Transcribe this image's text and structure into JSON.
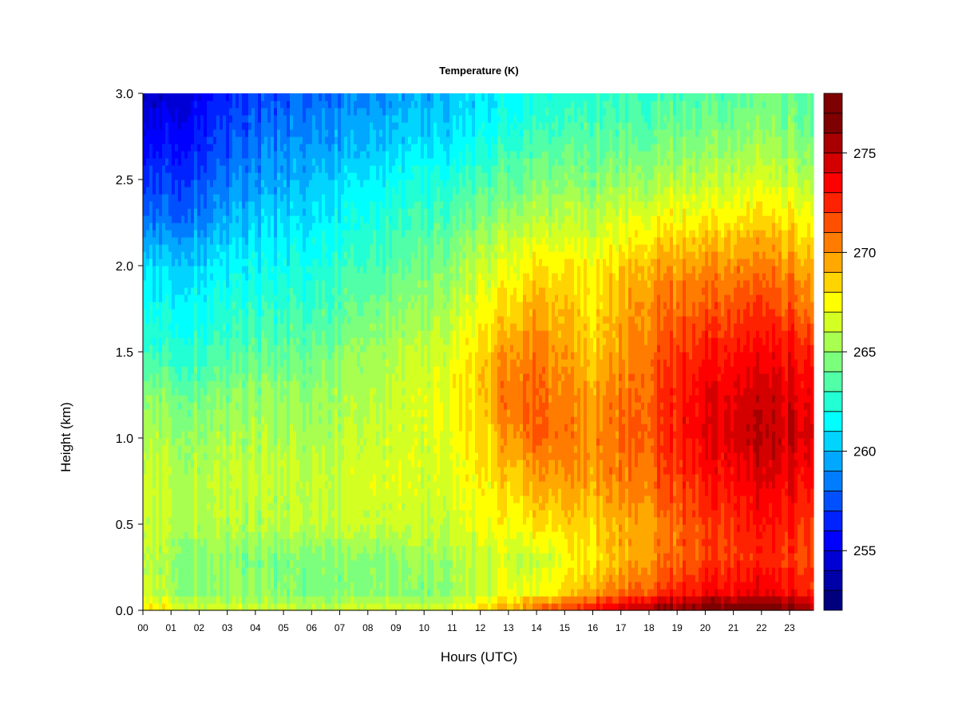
{
  "chart_data": {
    "type": "heatmap",
    "title": "Temperature (K)",
    "xlabel": "Hours (UTC)",
    "ylabel": "Height (km)",
    "x_ticks": [
      "00",
      "01",
      "02",
      "03",
      "04",
      "05",
      "06",
      "07",
      "08",
      "09",
      "10",
      "11",
      "12",
      "13",
      "14",
      "15",
      "16",
      "17",
      "18",
      "19",
      "20",
      "21",
      "22",
      "23"
    ],
    "y_ticks": [
      "0.0",
      "0.5",
      "1.0",
      "1.5",
      "2.0",
      "2.5",
      "3.0"
    ],
    "xlim": [
      0,
      23.85
    ],
    "ylim": [
      0,
      3.0
    ],
    "x_hours": [
      0,
      2,
      4,
      6,
      8,
      10,
      12,
      13,
      14,
      16,
      18,
      20,
      22,
      23.85
    ],
    "y_km": [
      0,
      0.05,
      0.1,
      0.3,
      0.5,
      0.75,
      1.0,
      1.25,
      1.5,
      1.75,
      2.0,
      2.25,
      2.5,
      2.75,
      3.0
    ],
    "z_kelvin": [
      [
        268,
        267,
        266.5,
        266,
        266.5,
        266.5,
        268,
        269.5,
        271,
        273,
        276,
        277,
        277,
        276
      ],
      [
        267,
        266,
        265.5,
        265.5,
        265.5,
        265.5,
        267,
        268.5,
        269.5,
        271.5,
        274,
        276,
        276,
        275
      ],
      [
        266,
        265,
        265,
        264.5,
        264.5,
        264.5,
        266,
        267.5,
        267,
        269.5,
        272,
        273.5,
        274,
        273
      ],
      [
        265.5,
        265,
        264.5,
        264.5,
        264.5,
        265,
        266,
        266.5,
        266,
        268,
        270,
        272,
        272.5,
        272
      ],
      [
        266,
        266,
        265.5,
        266,
        266,
        266,
        267,
        267.5,
        268,
        268.5,
        270,
        272,
        273,
        272.5
      ],
      [
        266,
        266,
        266,
        266,
        266.5,
        266.5,
        267.5,
        268.5,
        269.5,
        269.5,
        271,
        273,
        274,
        273.5
      ],
      [
        265.5,
        265.5,
        265.5,
        265.5,
        266,
        266.5,
        268,
        270,
        271,
        270,
        271.5,
        274,
        275,
        274.5
      ],
      [
        264.5,
        264.5,
        265,
        265,
        265.5,
        266.5,
        268.5,
        271,
        271,
        269.5,
        271.5,
        274,
        274.5,
        274
      ],
      [
        262.5,
        263,
        263.5,
        264,
        265,
        266,
        268,
        270,
        270.5,
        268.5,
        271,
        273,
        273.5,
        273
      ],
      [
        261.5,
        262,
        262.5,
        263,
        264,
        265,
        267,
        268.5,
        269.5,
        268,
        270.5,
        271.5,
        272,
        271
      ],
      [
        260.5,
        261,
        261.5,
        262,
        263,
        264,
        266,
        267,
        268,
        267.5,
        269.5,
        270,
        270.5,
        269.5
      ],
      [
        258,
        259,
        260.5,
        261,
        262,
        263,
        264.5,
        265.5,
        266,
        266,
        267.5,
        268,
        268.5,
        268
      ],
      [
        256.5,
        257.5,
        259,
        260,
        261,
        262,
        263,
        264,
        264.5,
        264.5,
        265.5,
        266,
        266.5,
        266
      ],
      [
        255,
        256.5,
        258,
        259,
        259.5,
        260.5,
        261.5,
        262.5,
        263,
        263.5,
        264,
        264.5,
        265,
        264.5
      ],
      [
        253.5,
        255.5,
        257,
        258,
        258.5,
        259.5,
        260.5,
        261.5,
        262,
        262.5,
        263,
        263.5,
        264,
        264
      ]
    ],
    "colorbar": {
      "min": 252,
      "max": 278,
      "step": 1,
      "tick_labels": [
        "255",
        "260",
        "265",
        "270",
        "275"
      ],
      "tick_values": [
        255,
        260,
        265,
        270,
        275
      ],
      "colors": [
        "#00007f",
        "#0000a8",
        "#0000d4",
        "#0000ff",
        "#0022ff",
        "#0050ff",
        "#007cff",
        "#00a8ff",
        "#00d4ff",
        "#00ffff",
        "#22ffd4",
        "#50ffa8",
        "#7cff7c",
        "#a8ff50",
        "#d4ff22",
        "#ffff00",
        "#ffd400",
        "#ffa800",
        "#ff7c00",
        "#ff5000",
        "#ff2200",
        "#ff0000",
        "#d40000",
        "#a80000",
        "#7f0000",
        "#7f0000"
      ]
    },
    "grid": false,
    "legend": "colorbar-right"
  }
}
